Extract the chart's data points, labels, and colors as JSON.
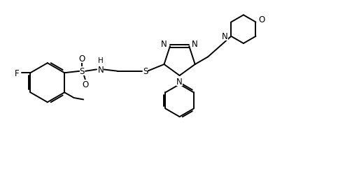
{
  "background": "#ffffff",
  "line_color": "#000000",
  "line_width": 1.4,
  "font_size": 8.5,
  "figsize": [
    5.13,
    2.53
  ],
  "dpi": 100,
  "xlim": [
    0,
    10.5
  ],
  "ylim": [
    0,
    5.2
  ]
}
